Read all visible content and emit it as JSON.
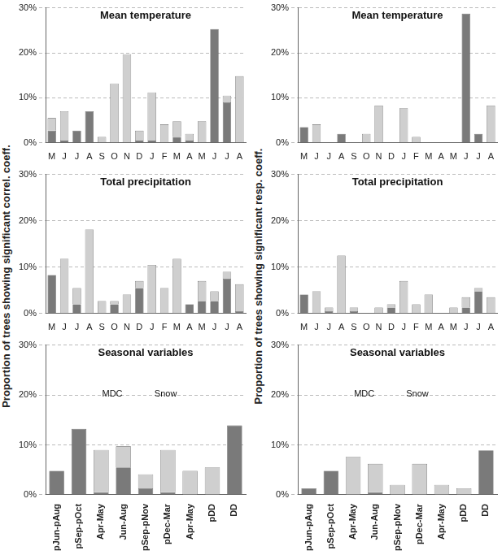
{
  "chart_data": [
    {
      "type": "bar",
      "title": "Mean temperature",
      "stacked": true,
      "grid": true,
      "categories": [
        "M",
        "J",
        "J",
        "A",
        "S",
        "O",
        "N",
        "D",
        "J",
        "F",
        "M",
        "A",
        "M",
        "J",
        "J",
        "A"
      ],
      "series": [
        {
          "color": "#7a7a7a",
          "values": [
            2.7,
            0.5,
            2.7,
            7,
            0,
            0,
            0,
            0.5,
            0.5,
            0,
            1.3,
            0.5,
            0,
            25.3,
            9,
            0
          ]
        },
        {
          "color": "#cfcfcf",
          "values": [
            2.8,
            6.5,
            0,
            0,
            1.3,
            13.2,
            19.7,
            2.2,
            10.7,
            4.1,
            3.5,
            1.5,
            4.8,
            0,
            1.5,
            14.8
          ]
        }
      ],
      "ylim": [
        0,
        30
      ],
      "yticks": [
        {
          "value": 0,
          "label": "0%"
        },
        {
          "value": 10,
          "label": "10%"
        },
        {
          "value": 20,
          "label": "20%"
        },
        {
          "value": 30,
          "label": "30%"
        }
      ]
    },
    {
      "type": "bar",
      "title": "Mean temperature",
      "stacked": true,
      "grid": true,
      "categories": [
        "M",
        "J",
        "J",
        "A",
        "S",
        "O",
        "N",
        "D",
        "J",
        "F",
        "M",
        "A",
        "M",
        "J",
        "J",
        "A"
      ],
      "series": [
        {
          "color": "#7a7a7a",
          "values": [
            3.5,
            0,
            0,
            2,
            0,
            0,
            0,
            0,
            0,
            0,
            0,
            0,
            0,
            28.7,
            2,
            0
          ]
        },
        {
          "color": "#cfcfcf",
          "values": [
            0,
            4.1,
            0,
            0,
            0,
            2,
            8.3,
            0,
            7.7,
            1.3,
            0,
            0,
            0,
            0,
            0,
            8.3
          ]
        }
      ],
      "ylim": [
        0,
        30
      ],
      "yticks": [
        {
          "value": 0,
          "label": "0%"
        },
        {
          "value": 10,
          "label": "10%"
        },
        {
          "value": 20,
          "label": "20%"
        },
        {
          "value": 30,
          "label": "30%"
        }
      ]
    },
    {
      "type": "bar",
      "title": "Total precipitation",
      "stacked": true,
      "grid": true,
      "categories": [
        "M",
        "J",
        "J",
        "A",
        "S",
        "O",
        "N",
        "D",
        "J",
        "F",
        "M",
        "A",
        "M",
        "J",
        "J",
        "A"
      ],
      "series": [
        {
          "color": "#7a7a7a",
          "values": [
            8.3,
            0,
            2,
            0,
            0,
            2,
            0,
            5.5,
            0,
            0,
            0,
            2,
            2.7,
            2.7,
            7.5,
            0.5
          ]
        },
        {
          "color": "#cfcfcf",
          "values": [
            0,
            11.8,
            3.5,
            18.1,
            2.7,
            0.7,
            4.1,
            1.5,
            10.5,
            5.5,
            11.8,
            0,
            4.3,
            2.1,
            1.5,
            5.8
          ]
        }
      ],
      "ylim": [
        0,
        30
      ],
      "yticks": [
        {
          "value": 0,
          "label": "0%"
        },
        {
          "value": 10,
          "label": "10%"
        },
        {
          "value": 20,
          "label": "20%"
        },
        {
          "value": 30,
          "label": "30%"
        }
      ]
    },
    {
      "type": "bar",
      "title": "Total precipitation",
      "stacked": true,
      "grid": true,
      "categories": [
        "M",
        "J",
        "J",
        "A",
        "S",
        "O",
        "N",
        "D",
        "J",
        "F",
        "M",
        "A",
        "M",
        "J",
        "J",
        "A"
      ],
      "series": [
        {
          "color": "#7a7a7a",
          "values": [
            4.1,
            0,
            0.5,
            0,
            0.5,
            0,
            0,
            1.3,
            0,
            0,
            0,
            0,
            0,
            1.3,
            4.8,
            0
          ]
        },
        {
          "color": "#cfcfcf",
          "values": [
            0,
            4.8,
            0.8,
            12.5,
            0.8,
            0,
            1.3,
            0.7,
            7,
            2,
            4.1,
            0,
            1.3,
            2.2,
            0.7,
            3.5
          ]
        }
      ],
      "ylim": [
        0,
        30
      ],
      "yticks": [
        {
          "value": 0,
          "label": "0%"
        },
        {
          "value": 10,
          "label": "10%"
        },
        {
          "value": 20,
          "label": "20%"
        },
        {
          "value": 30,
          "label": "30%"
        }
      ]
    },
    {
      "type": "bar",
      "title": "Seasonal variables",
      "stacked": true,
      "grid": true,
      "categories": [
        "pJun-pAug",
        "pSep-pOct",
        "Apr-May",
        "Jun-Aug",
        "pSep-pNov",
        "pDec-Mar",
        "Apr-May",
        "pDD",
        "DD"
      ],
      "series": [
        {
          "color": "#7a7a7a",
          "values": [
            4.8,
            13.2,
            0.5,
            5.5,
            1.3,
            0.5,
            0,
            0,
            13.9
          ]
        },
        {
          "color": "#cfcfcf",
          "values": [
            0,
            0,
            8.5,
            4.2,
            2.8,
            8.5,
            4.8,
            5.5,
            0
          ]
        }
      ],
      "annotations": [
        "MDC",
        "Snow"
      ],
      "ylim": [
        0,
        30
      ],
      "yticks": [
        {
          "value": 0,
          "label": "0%"
        },
        {
          "value": 10,
          "label": "10%"
        },
        {
          "value": 20,
          "label": "20%"
        },
        {
          "value": 30,
          "label": "30%"
        }
      ]
    },
    {
      "type": "bar",
      "title": "Seasonal variables",
      "stacked": true,
      "grid": true,
      "categories": [
        "pJun-pAug",
        "pSep-pOct",
        "Apr-May",
        "Jun-Aug",
        "pSep-pNov",
        "pDec-Mar",
        "Apr-May",
        "pDD",
        "DD"
      ],
      "series": [
        {
          "color": "#7a7a7a",
          "values": [
            1.3,
            4.8,
            0,
            0.5,
            0,
            0,
            0,
            0,
            8.9
          ]
        },
        {
          "color": "#cfcfcf",
          "values": [
            0,
            0,
            7.6,
            5.7,
            2,
            6.2,
            2,
            1.3,
            0
          ]
        }
      ],
      "annotations": [
        "MDC",
        "Snow"
      ],
      "ylim": [
        0,
        30
      ],
      "yticks": [
        {
          "value": 0,
          "label": "0%"
        },
        {
          "value": 10,
          "label": "10%"
        },
        {
          "value": 20,
          "label": "20%"
        },
        {
          "value": 30,
          "label": "30%"
        }
      ]
    }
  ],
  "y_labels": [
    "Proportion of trees showing significant correl. coeff.",
    "Proportion of trees showing significant resp. coeff."
  ]
}
